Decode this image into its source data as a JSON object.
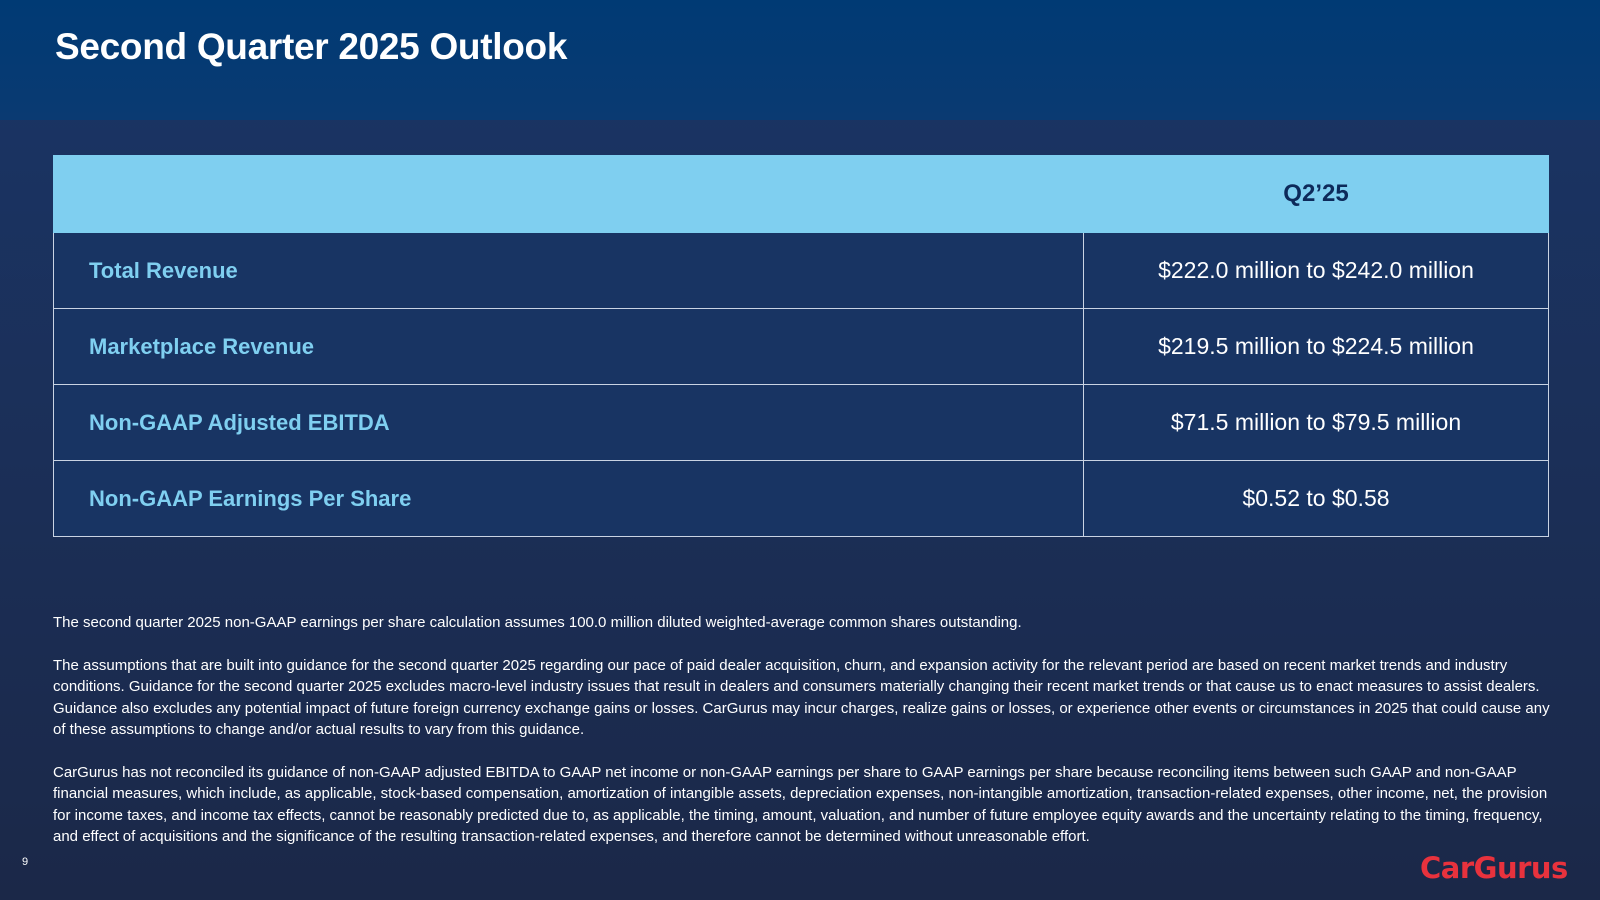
{
  "slide": {
    "title": "Second Quarter 2025 Outlook",
    "page_number": "9"
  },
  "table": {
    "column_header": "Q2’25",
    "rows": [
      {
        "metric": "Total Revenue",
        "value": "$222.0 million to $242.0 million"
      },
      {
        "metric": "Marketplace Revenue",
        "value": "$219.5 million to $224.5 million"
      },
      {
        "metric": "Non-GAAP Adjusted EBITDA",
        "value": "$71.5 million to $79.5 million"
      },
      {
        "metric": "Non-GAAP Earnings Per Share",
        "value": "$0.52 to $0.58"
      }
    ]
  },
  "notes": [
    "The second quarter 2025 non-GAAP earnings per share calculation assumes 100.0 million diluted weighted-average common shares outstanding.",
    "The assumptions that are built into guidance for the second quarter 2025 regarding our pace of paid dealer acquisition, churn, and expansion activity for the relevant period are based on recent market trends and industry conditions. Guidance for the second quarter 2025 excludes macro-level industry issues that result in dealers and consumers materially changing their recent market trends or that cause us to enact measures to assist dealers. Guidance also excludes any potential impact of future foreign currency exchange gains or losses. CarGurus may incur charges, realize gains or losses, or experience other events or circumstances in 2025 that could cause any of these assumptions to change and/or actual results to vary from this guidance.",
    "CarGurus has not reconciled its guidance of non-GAAP adjusted EBITDA to GAAP net income or non-GAAP earnings per share to GAAP earnings per share because reconciling items between such GAAP and non-GAAP financial measures, which include, as applicable, stock-based compensation, amortization of intangible assets, depreciation expenses, non-intangible amortization, transaction-related expenses, other income, net, the provision for income taxes, and income tax effects, cannot be reasonably predicted due to, as applicable, the timing, amount, valuation, and number of future employee equity awards and the uncertainty relating to the timing, frequency, and effect of acquisitions and the significance of the resulting transaction-related expenses, and therefore cannot be determined without unreasonable effort."
  ],
  "brand": {
    "logo_text": "CarGurus"
  },
  "colors": {
    "header_band": "#003a74",
    "table_header": "#7fcff0",
    "metric_label": "#7fcff0",
    "logo": "#e8323d"
  }
}
